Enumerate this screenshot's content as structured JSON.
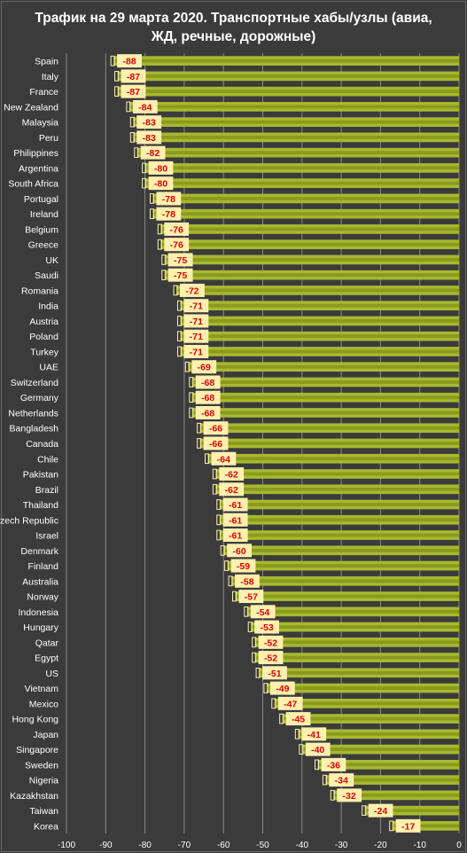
{
  "chart_data": {
    "type": "bar",
    "orientation": "horizontal",
    "title": "Трафик на 29 марта 2020. Транспортные хабы/узлы (авиа,\nЖД, речные, дорожные)",
    "categories": [
      "Spain",
      "Italy",
      "France",
      "New Zealand",
      "Malaysia",
      "Peru",
      "Philippines",
      "Argentina",
      "South Africa",
      "Portugal",
      "Ireland",
      "Belgium",
      "Greece",
      "UK",
      "Saudi",
      "Romania",
      "India",
      "Austria",
      "Poland",
      "Turkey",
      "UAE",
      "Switzerland",
      "Germany",
      "Netherlands",
      "Bangladesh",
      "Canada",
      "Chile",
      "Pakistan",
      "Brazil",
      "Thailand",
      "Czech Republic",
      "Israel",
      "Denmark",
      "Finland",
      "Australia",
      "Norway",
      "Indonesia",
      "Hungary",
      "Qatar",
      "Egypt",
      "US",
      "Vietnam",
      "Mexico",
      "Hong Kong",
      "Japan",
      "Singapore",
      "Sweden",
      "Nigeria",
      "Kazakhstan",
      "Taiwan",
      "Korea"
    ],
    "values": [
      -88,
      -87,
      -87,
      -84,
      -83,
      -83,
      -82,
      -80,
      -80,
      -78,
      -78,
      -76,
      -76,
      -75,
      -75,
      -72,
      -71,
      -71,
      -71,
      -71,
      -69,
      -68,
      -68,
      -68,
      -66,
      -66,
      -64,
      -62,
      -62,
      -61,
      -61,
      -61,
      -60,
      -59,
      -58,
      -57,
      -54,
      -53,
      -52,
      -52,
      -51,
      -49,
      -47,
      -45,
      -41,
      -40,
      -36,
      -34,
      -32,
      -24,
      -17
    ],
    "x_ticks": [
      "-100",
      "-90",
      "-80",
      "-70",
      "-60",
      "-50",
      "-40",
      "-30",
      "-20",
      "-10",
      "0"
    ],
    "xlim": [
      -100,
      0
    ],
    "grid": "vertical",
    "colors": {
      "bar_fill": "#a8b830",
      "bar_inner": "#8a9a1c",
      "label_box": "#fff0b0",
      "label_text": "#e00000",
      "gridline": "#8a8a8a",
      "background": "#3b3b3b"
    }
  }
}
